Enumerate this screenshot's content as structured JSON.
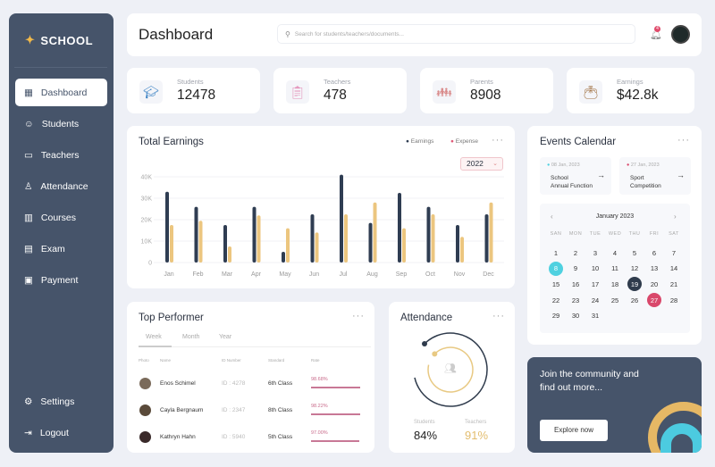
{
  "sidebar": {
    "brand": "SCHOOL",
    "items": [
      {
        "label": "Dashboard",
        "icon": "grid-icon",
        "active": true
      },
      {
        "label": "Students",
        "icon": "student-icon"
      },
      {
        "label": "Teachers",
        "icon": "teacher-icon"
      },
      {
        "label": "Attendance",
        "icon": "user-check-icon"
      },
      {
        "label": "Courses",
        "icon": "book-icon"
      },
      {
        "label": "Exam",
        "icon": "exam-icon"
      },
      {
        "label": "Payment",
        "icon": "payment-icon"
      }
    ],
    "settings": "Settings",
    "logout": "Logout"
  },
  "header": {
    "title": "Dashboard",
    "search_placeholder": "Search for students/teachers/documents...",
    "notification_count": "4"
  },
  "stats": [
    {
      "label": "Students",
      "value": "12478",
      "icon": "graduate-icon"
    },
    {
      "label": "Teachers",
      "value": "478",
      "icon": "teacher-board-icon"
    },
    {
      "label": "Parents",
      "value": "8908",
      "icon": "family-icon"
    },
    {
      "label": "Earnings",
      "value": "$42.8k",
      "icon": "wallet-icon"
    }
  ],
  "earnings": {
    "title": "Total Earnings",
    "legend_earnings": "Earnings",
    "legend_expense": "Expense",
    "year": "2022"
  },
  "chart_data": {
    "type": "bar",
    "categories": [
      "Jan",
      "Feb",
      "Mar",
      "Apr",
      "May",
      "Jun",
      "Jul",
      "Aug",
      "Sep",
      "Oct",
      "Nov",
      "Dec"
    ],
    "series": [
      {
        "name": "Earnings",
        "color": "#2f3d52",
        "values": [
          33,
          26,
          17.5,
          26,
          5,
          22.5,
          41,
          18.5,
          32.5,
          26,
          17.5,
          22.5
        ]
      },
      {
        "name": "Expense",
        "color": "#ecc67f",
        "values": [
          17.5,
          19.5,
          7.5,
          22,
          16,
          14,
          22.5,
          28,
          16,
          22.5,
          12,
          28
        ]
      }
    ],
    "yticks": [
      "0",
      "10K",
      "20K",
      "30K",
      "40K"
    ],
    "ylim": [
      0,
      40
    ],
    "grid": true,
    "legend": "top-right"
  },
  "events": {
    "title": "Events Calendar",
    "items": [
      {
        "date": "08 Jan, 2023",
        "title1": "School",
        "title2": "Annual Function",
        "color": "#4fd1e0"
      },
      {
        "date": "27 Jan, 2023",
        "title1": "Sport",
        "title2": "Competition",
        "color": "#d9486b"
      }
    ],
    "month": "January 2023",
    "weekdays": [
      "SAN",
      "MON",
      "TUE",
      "WED",
      "THU",
      "FRI",
      "SAT"
    ],
    "days": 31,
    "start_weekday": 0,
    "highlights": [
      {
        "day": 8,
        "color": "#4fd1e0"
      },
      {
        "day": 19,
        "color": "#2f3b4c"
      },
      {
        "day": 27,
        "color": "#d9486b"
      }
    ]
  },
  "performer": {
    "title": "Top Performer",
    "tabs": [
      "Week",
      "Month",
      "Year"
    ],
    "columns": [
      "Photo",
      "Name",
      "ID Number",
      "Standard",
      "Rate"
    ],
    "rows": [
      {
        "name": "Enos Schimel",
        "id": "ID : 4278",
        "standard": "6th Class",
        "rate": "98.68%",
        "pct": 98.68
      },
      {
        "name": "Cayla Bergnaum",
        "id": "ID : 2347",
        "standard": "8th Class",
        "rate": "98.22%",
        "pct": 98.22
      },
      {
        "name": "Kathryn Hahn",
        "id": "ID : 5940",
        "standard": "5th Class",
        "rate": "97.00%",
        "pct": 97
      }
    ]
  },
  "attendance": {
    "title": "Attendance",
    "students_label": "Students",
    "students_value": "84%",
    "teachers_label": "Teachers",
    "teachers_value": "91%",
    "students_pct": 84,
    "teachers_pct": 91
  },
  "promo": {
    "text1": "Join the community and",
    "text2": "find out more...",
    "button": "Explore now"
  }
}
